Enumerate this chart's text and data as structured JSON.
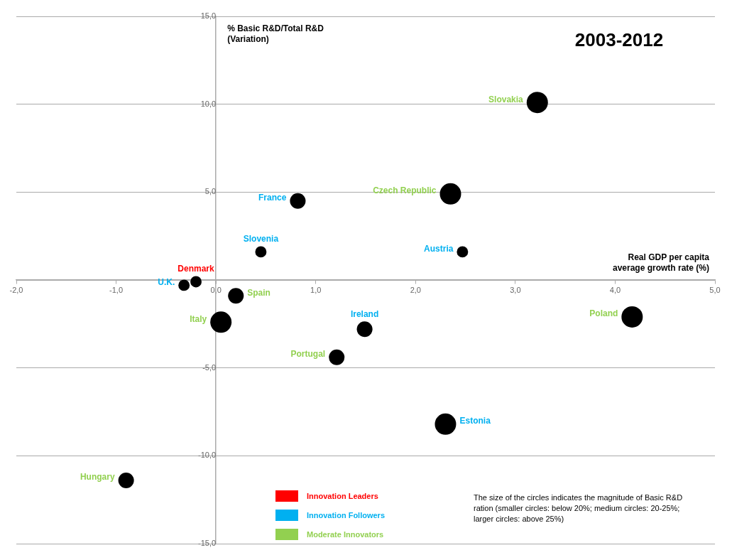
{
  "chart_data": {
    "type": "bubble",
    "title": "2003-2012",
    "xlabel": "Real GDP per capita average growth rate (%)",
    "ylabel": "% Basic R&D/Total R&D (Variation)",
    "annotations": [
      "Innovation Leaders",
      "Innovation Followers",
      "Moderate Innovators",
      "The size of the circles indicates the magnitude of Basic R&D ration (smaller circles: below 20%; medium circles: 20-25%; larger circles: above 25%)"
    ],
    "xlim": [
      -2,
      5
    ],
    "xticks": [
      {
        "value": -2,
        "label": "-2,0"
      },
      {
        "value": -1,
        "label": "-1,0"
      },
      {
        "value": 0,
        "label": "0,0"
      },
      {
        "value": 1,
        "label": "1,0"
      },
      {
        "value": 2,
        "label": "2,0"
      },
      {
        "value": 3,
        "label": "3,0"
      },
      {
        "value": 4,
        "label": "4,0"
      },
      {
        "value": 5,
        "label": "5,0"
      }
    ],
    "ylim": [
      -15,
      15
    ],
    "yticks": [
      {
        "value": -15,
        "label": "-15,0"
      },
      {
        "value": -10,
        "label": "-10,0"
      },
      {
        "value": -5,
        "label": "-5,0"
      },
      {
        "value": 0,
        "label": null
      },
      {
        "value": 5,
        "label": "5,0"
      },
      {
        "value": 10,
        "label": "10,0"
      },
      {
        "value": 15,
        "label": "15,0"
      }
    ],
    "grid": "y",
    "series": [
      {
        "color": "#ff0000",
        "x": [
          -0.2
        ],
        "values": [
          -0.1
        ],
        "sizes": [
          0.28
        ],
        "colors": [
          "#000000"
        ],
        "value_labels": [
          "Denmark"
        ]
      },
      {
        "color": "#00b0f0",
        "x": [
          0.82,
          0.45,
          2.47,
          -0.32,
          1.49,
          2.3
        ],
        "values": [
          4.5,
          1.6,
          1.6,
          -0.3,
          -2.8,
          -8.2
        ],
        "sizes": [
          0.54,
          0.28,
          0.28,
          0.28,
          0.54,
          1
        ],
        "colors": [
          "#000000",
          "#000000",
          "#000000",
          "#000000",
          "#000000",
          "#000000"
        ],
        "value_labels": [
          "France",
          "Slovenia",
          "Austria",
          "U.K.",
          "Ireland",
          "Estonia"
        ]
      },
      {
        "color": "#92d050",
        "x": [
          3.22,
          2.35,
          0.2,
          0.05,
          1.21,
          4.17,
          -0.9
        ],
        "values": [
          10.1,
          4.9,
          -0.9,
          -2.4,
          -4.4,
          -2.1,
          -11.4
        ],
        "sizes": [
          1,
          1,
          0.54,
          1,
          0.54,
          1,
          0.54
        ],
        "colors": [
          "#000000",
          "#000000",
          "#000000",
          "#000000",
          "#000000",
          "#000000",
          "#000000"
        ],
        "value_labels": [
          "Slovakia",
          "Czech Republic",
          "Spain",
          "Italy",
          "Portugal",
          "Poland",
          "Hungary"
        ]
      }
    ]
  }
}
